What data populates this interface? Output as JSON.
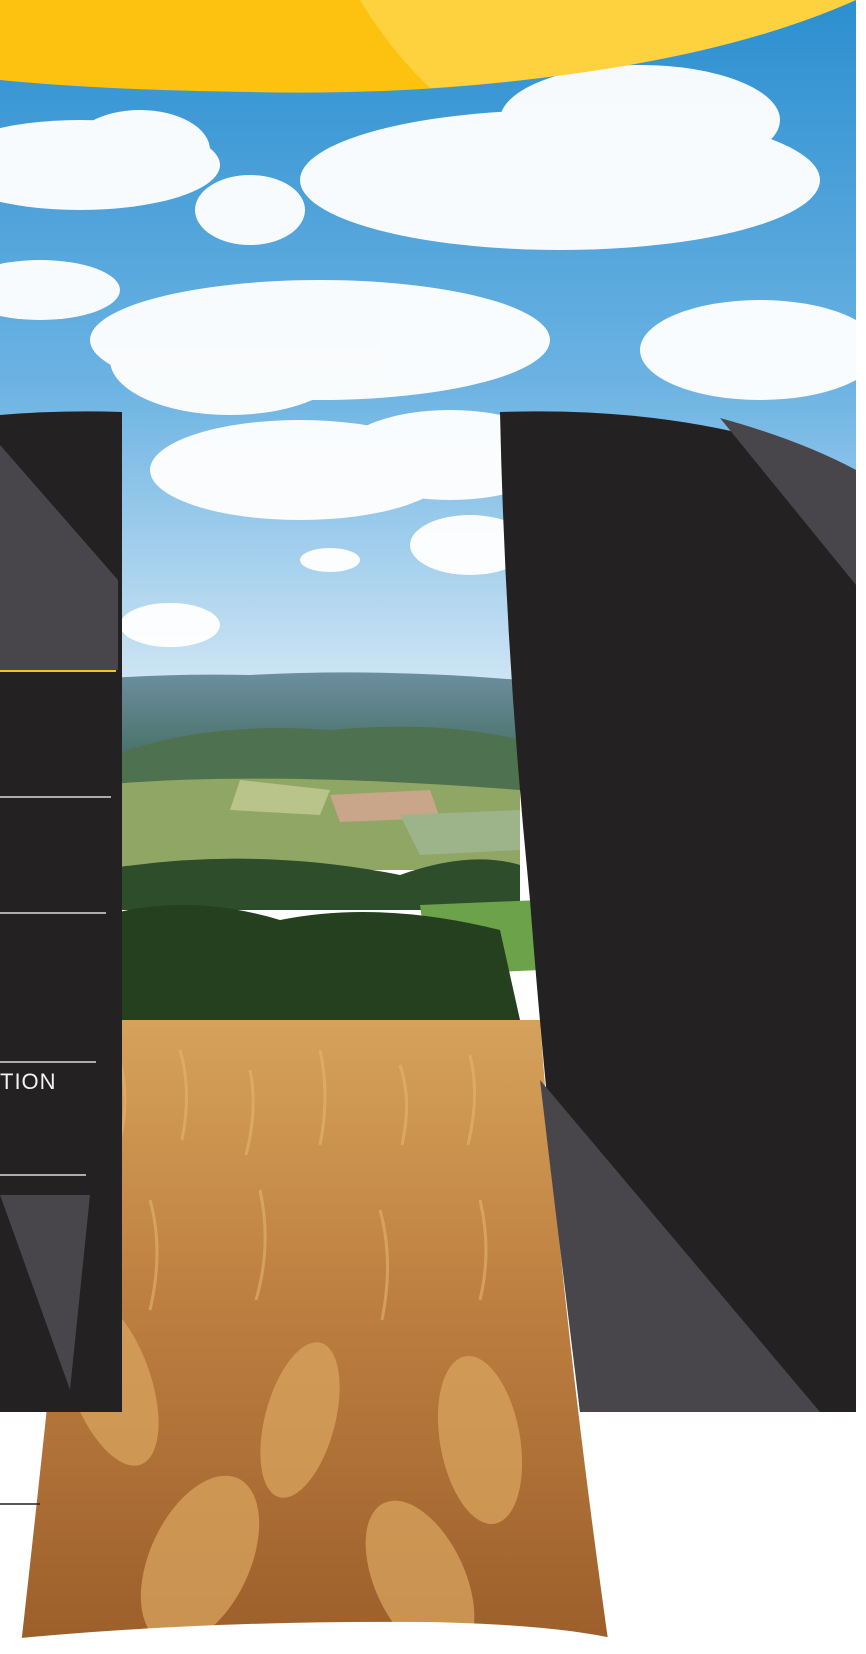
{
  "menu": {
    "partial_label": "TION"
  },
  "colors": {
    "sun_yellow": "#FDC20F",
    "sun_yellow_light": "#FDD23E",
    "panel_dark": "#242122",
    "panel_gray": "#48464A",
    "sky_top": "#2C8FD0",
    "sky_bottom": "#CFE5F4",
    "wheat": "#C48A45",
    "divider_yellow": "#F6C21B",
    "divider_white": "#FFFFFF"
  },
  "icons": {
    "background": "landscape-wheat-field-illustration"
  }
}
